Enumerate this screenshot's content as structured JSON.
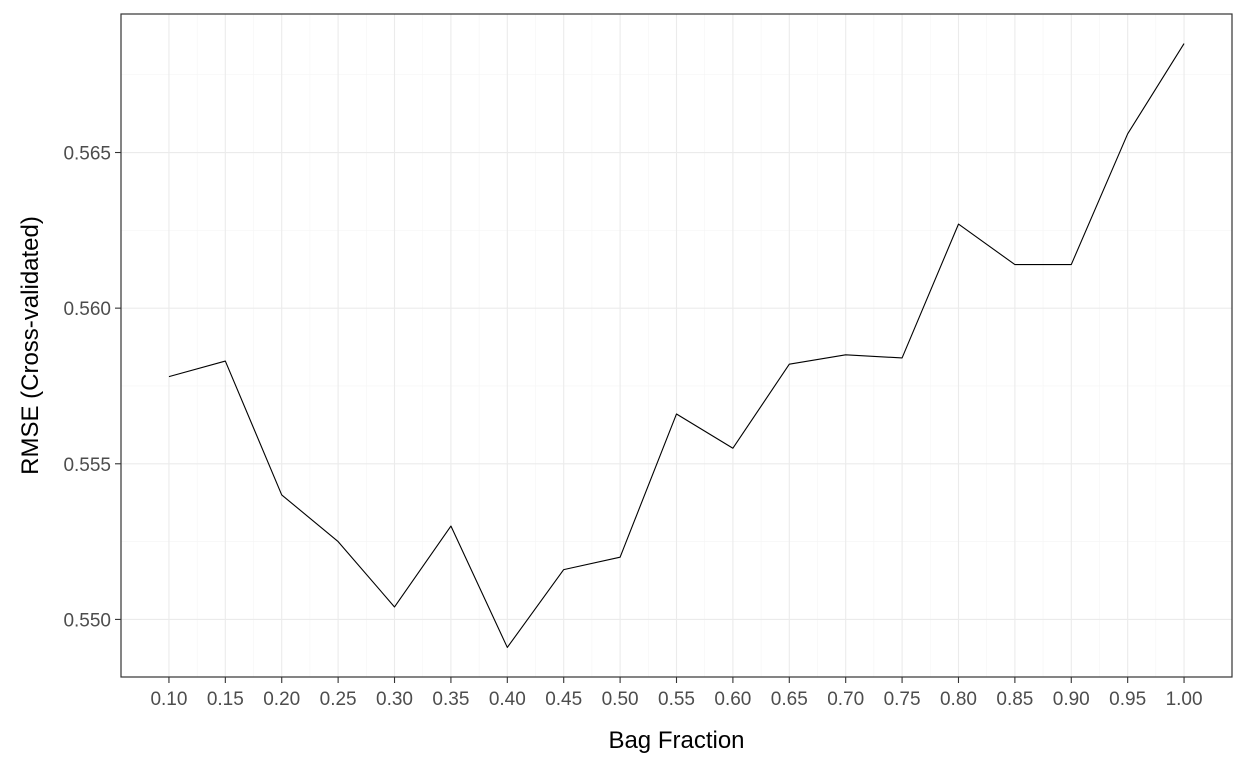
{
  "chart_data": {
    "type": "line",
    "title": "",
    "xlabel": "Bag Fraction",
    "ylabel": "RMSE (Cross-validated)",
    "x": [
      0.1,
      0.15,
      0.2,
      0.25,
      0.3,
      0.35,
      0.4,
      0.45,
      0.5,
      0.55,
      0.6,
      0.65,
      0.7,
      0.75,
      0.8,
      0.85,
      0.9,
      0.95,
      1.0
    ],
    "x_tick_labels": [
      "0.10",
      "0.15",
      "0.20",
      "0.25",
      "0.30",
      "0.35",
      "0.40",
      "0.45",
      "0.50",
      "0.55",
      "0.60",
      "0.65",
      "0.70",
      "0.75",
      "0.80",
      "0.85",
      "0.90",
      "0.95",
      "1.00"
    ],
    "series": [
      {
        "values": [
          0.5578,
          0.5583,
          0.554,
          0.5525,
          0.5504,
          0.553,
          0.5491,
          0.5516,
          0.552,
          0.5566,
          0.5555,
          0.5582,
          0.5585,
          0.5584,
          0.5627,
          0.5614,
          0.5614,
          0.5656,
          0.5685
        ]
      }
    ],
    "y_ticks": [
      0.55,
      0.555,
      0.56,
      0.565
    ],
    "y_tick_labels": [
      "0.550",
      "0.555",
      "0.560",
      "0.565"
    ],
    "xlim": [
      0.0575,
      1.0425
    ],
    "ylim": [
      0.54815,
      0.56945
    ],
    "grid": true,
    "legend": "none",
    "colors": {
      "line": "#000000",
      "grid_major": "#ebebeb",
      "grid_minor": "#f5f5f5",
      "panel_border": "#333333",
      "tick_text": "#4d4d4d"
    }
  }
}
